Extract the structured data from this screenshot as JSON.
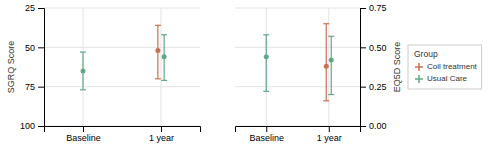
{
  "chart_data": [
    {
      "type": "errorbar",
      "categories": [
        "Baseline",
        "1 year"
      ],
      "ylabel": "SGRQ Score",
      "ylim": [
        100,
        25
      ],
      "yticks": [
        25,
        50,
        75,
        100
      ],
      "grid": true,
      "series": [
        {
          "color": "#c87050",
          "values": [
            null,
            52
          ],
          "ci_low": [
            null,
            70
          ],
          "ci_high": [
            null,
            36
          ]
        },
        {
          "color": "#60a888",
          "values": [
            65,
            56
          ],
          "ci_low": [
            77,
            71
          ],
          "ci_high": [
            53,
            42
          ]
        }
      ]
    },
    {
      "type": "errorbar",
      "categories": [
        "Baseline",
        "1 year"
      ],
      "ylabel": "EQ5D Score",
      "ylim": [
        0.0,
        0.75
      ],
      "yticks": [
        {
          "value": 0.0,
          "label": "0.00"
        },
        0.25,
        {
          "value": 0.5,
          "label": "0.50"
        },
        0.75
      ],
      "grid": true,
      "legend": "right",
      "legend_title": "Group",
      "series": [
        {
          "name": "Coil treatment",
          "color": "#c87050",
          "values": [
            null,
            0.38
          ],
          "ci_low": [
            null,
            0.16
          ],
          "ci_high": [
            null,
            0.65
          ]
        },
        {
          "name": "Usual Care",
          "color": "#60a888",
          "values": [
            0.44,
            0.42
          ],
          "ci_low": [
            0.22,
            0.2
          ],
          "ci_high": [
            0.58,
            0.57
          ]
        }
      ]
    }
  ]
}
